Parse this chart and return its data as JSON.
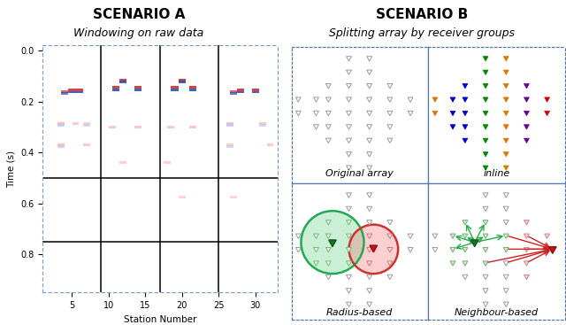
{
  "title_a": "SCENARIO A",
  "subtitle_a": "Windowing on raw data",
  "title_b": "SCENARIO B",
  "subtitle_b": "Splitting array by receiver groups",
  "xlabel_a": "Station Number",
  "ylabel_a": "Time (s)",
  "xlim_a": [
    1,
    33
  ],
  "ylim_a": [
    0.95,
    -0.02
  ],
  "xticks_a": [
    5,
    10,
    15,
    20,
    25,
    30
  ],
  "yticks_a": [
    0.0,
    0.2,
    0.4,
    0.6,
    0.8
  ],
  "vlines_a": [
    9,
    17,
    25
  ],
  "hlines_a": [
    0.5,
    0.75
  ],
  "blue_color": "#2244bb",
  "red_color": "#cc2222",
  "pink_color": "#ffaaaa",
  "lblue_color": "#aabbff",
  "label_orig": "Original array",
  "label_inline": "inline",
  "label_radius": "Radius-based",
  "label_neighbour": "Neighbour-based"
}
